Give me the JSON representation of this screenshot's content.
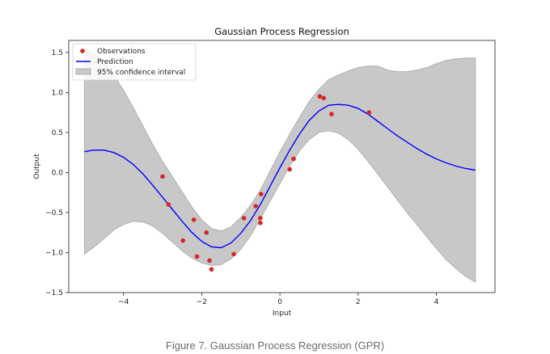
{
  "caption": "Figure 7. Gaussian Process Regression (GPR)",
  "chart_data": {
    "type": "line",
    "title": "Gaussian Process Regression",
    "xlabel": "Input",
    "ylabel": "Output",
    "xlim": [
      -5.4,
      5.5
    ],
    "ylim": [
      -1.5,
      1.65
    ],
    "xticks": [
      -4,
      -2,
      0,
      2,
      4
    ],
    "xtick_labels": [
      "−4",
      "−2",
      "0",
      "2",
      "4"
    ],
    "yticks": [
      -1.5,
      -1.0,
      -0.5,
      0.0,
      0.5,
      1.0,
      1.5
    ],
    "ytick_labels": [
      "−1.5",
      "−1.0",
      "−0.5",
      "0.0",
      "0.5",
      "1.0",
      "1.5"
    ],
    "grid": false,
    "legend_position": "top-left",
    "legend": {
      "observations": "Observations",
      "prediction": "Prediction",
      "interval": "95% confidence interval"
    },
    "colors": {
      "observations": "#d62728",
      "prediction": "#0000ff",
      "interval": "#c8c8c8",
      "interval_edge": "#a8a8a8"
    },
    "observations": [
      {
        "x": -3.0,
        "y": -0.05
      },
      {
        "x": -2.85,
        "y": -0.4
      },
      {
        "x": -2.48,
        "y": -0.85
      },
      {
        "x": -2.2,
        "y": -0.59
      },
      {
        "x": -2.12,
        "y": -1.05
      },
      {
        "x": -1.88,
        "y": -0.75
      },
      {
        "x": -1.8,
        "y": -1.1
      },
      {
        "x": -1.75,
        "y": -1.21
      },
      {
        "x": -1.18,
        "y": -1.02
      },
      {
        "x": -0.92,
        "y": -0.57
      },
      {
        "x": -0.62,
        "y": -0.42
      },
      {
        "x": -0.5,
        "y": -0.57
      },
      {
        "x": -0.5,
        "y": -0.63
      },
      {
        "x": -0.48,
        "y": -0.27
      },
      {
        "x": 0.25,
        "y": 0.04
      },
      {
        "x": 0.35,
        "y": 0.17
      },
      {
        "x": 1.02,
        "y": 0.95
      },
      {
        "x": 1.12,
        "y": 0.93
      },
      {
        "x": 1.32,
        "y": 0.73
      },
      {
        "x": 2.28,
        "y": 0.75
      }
    ],
    "prediction": {
      "x": [
        -5.0,
        -4.75,
        -4.5,
        -4.25,
        -4.0,
        -3.75,
        -3.5,
        -3.25,
        -3.0,
        -2.75,
        -2.5,
        -2.25,
        -2.0,
        -1.75,
        -1.5,
        -1.25,
        -1.0,
        -0.75,
        -0.5,
        -0.25,
        0.0,
        0.25,
        0.5,
        0.75,
        1.0,
        1.25,
        1.5,
        1.75,
        2.0,
        2.25,
        2.5,
        2.75,
        3.0,
        3.25,
        3.5,
        3.75,
        4.0,
        4.25,
        4.5,
        4.75,
        5.0
      ],
      "y": [
        0.26,
        0.28,
        0.28,
        0.25,
        0.19,
        0.1,
        -0.02,
        -0.16,
        -0.31,
        -0.46,
        -0.61,
        -0.75,
        -0.86,
        -0.93,
        -0.94,
        -0.88,
        -0.76,
        -0.6,
        -0.4,
        -0.17,
        0.06,
        0.28,
        0.48,
        0.65,
        0.77,
        0.84,
        0.85,
        0.84,
        0.8,
        0.73,
        0.64,
        0.55,
        0.46,
        0.38,
        0.3,
        0.23,
        0.17,
        0.12,
        0.08,
        0.05,
        0.03
      ]
    },
    "confidence_interval": {
      "x": [
        -5.0,
        -4.75,
        -4.5,
        -4.25,
        -4.0,
        -3.75,
        -3.5,
        -3.25,
        -3.0,
        -2.75,
        -2.5,
        -2.25,
        -2.0,
        -1.75,
        -1.5,
        -1.25,
        -1.0,
        -0.75,
        -0.5,
        -0.25,
        0.0,
        0.25,
        0.5,
        0.75,
        1.0,
        1.25,
        1.5,
        1.75,
        2.0,
        2.25,
        2.5,
        2.75,
        3.0,
        3.25,
        3.5,
        3.75,
        4.0,
        4.25,
        4.5,
        4.75,
        5.0
      ],
      "lower": [
        -1.02,
        -0.93,
        -0.83,
        -0.72,
        -0.65,
        -0.61,
        -0.62,
        -0.67,
        -0.76,
        -0.87,
        -0.98,
        -1.07,
        -1.13,
        -1.16,
        -1.15,
        -1.08,
        -0.96,
        -0.79,
        -0.58,
        -0.36,
        -0.14,
        0.08,
        0.27,
        0.41,
        0.5,
        0.52,
        0.49,
        0.41,
        0.29,
        0.14,
        -0.02,
        -0.18,
        -0.34,
        -0.5,
        -0.65,
        -0.8,
        -0.95,
        -1.09,
        -1.2,
        -1.3,
        -1.37
      ],
      "upper": [
        1.54,
        1.49,
        1.39,
        1.22,
        1.03,
        0.81,
        0.58,
        0.35,
        0.14,
        -0.05,
        -0.24,
        -0.43,
        -0.59,
        -0.7,
        -0.73,
        -0.68,
        -0.56,
        -0.41,
        -0.22,
        0.02,
        0.26,
        0.48,
        0.69,
        0.89,
        1.04,
        1.16,
        1.22,
        1.27,
        1.31,
        1.33,
        1.33,
        1.28,
        1.26,
        1.26,
        1.28,
        1.31,
        1.36,
        1.4,
        1.42,
        1.43,
        1.43
      ]
    }
  }
}
